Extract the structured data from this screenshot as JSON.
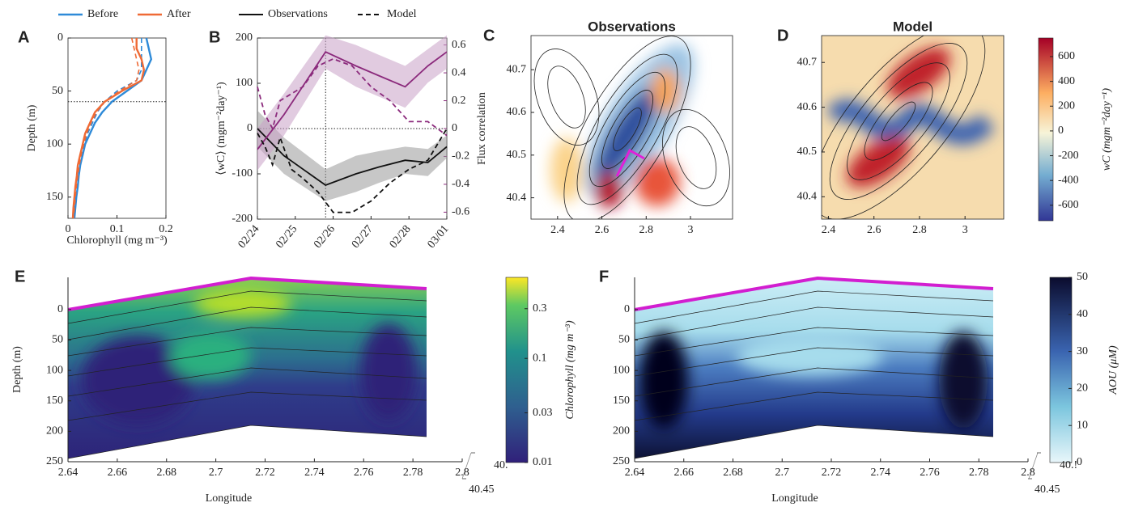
{
  "chart_data": [
    {
      "type": "line",
      "panel": "A",
      "xlabel": "Chlorophyll (mg m⁻³)",
      "ylabel": "Depth (m)",
      "xlim": [
        0,
        0.2
      ],
      "xticks": [
        0,
        0.1,
        0.2
      ],
      "ylim": [
        0,
        170
      ],
      "yticks": [
        0,
        50,
        100,
        150
      ],
      "y_reversed": true,
      "depth": [
        0,
        10,
        20,
        30,
        40,
        50,
        60,
        70,
        80,
        90,
        100,
        110,
        120,
        130,
        140,
        150,
        160,
        170
      ],
      "series": [
        {
          "name": "Before",
          "color": "#2e8ad8",
          "values": [
            0.16,
            0.165,
            0.17,
            0.16,
            0.15,
            0.12,
            0.09,
            0.07,
            0.055,
            0.045,
            0.035,
            0.03,
            0.025,
            0.022,
            0.02,
            0.017,
            0.015,
            0.013
          ],
          "model_values": [
            0.15,
            0.15,
            0.15,
            0.15,
            0.14,
            0.1,
            0.075,
            0.06,
            0.05,
            0.04,
            0.033,
            0.028,
            0.024,
            0.021,
            0.018,
            0.016,
            0.014,
            0.012
          ]
        },
        {
          "name": "After",
          "color": "#ef6a35",
          "values": [
            0.14,
            0.14,
            0.15,
            0.155,
            0.15,
            0.11,
            0.075,
            0.055,
            0.045,
            0.035,
            0.03,
            0.025,
            0.02,
            0.018,
            0.015,
            0.013,
            0.011,
            0.01
          ],
          "model_values": [
            0.13,
            0.135,
            0.14,
            0.145,
            0.14,
            0.105,
            0.075,
            0.058,
            0.047,
            0.038,
            0.032,
            0.027,
            0.023,
            0.02,
            0.017,
            0.015,
            0.013,
            0.011
          ]
        }
      ],
      "hline": 60
    },
    {
      "type": "line",
      "panel": "B",
      "ylabel": "⟨wC⟩ (mgm⁻²day⁻¹)",
      "y2label": "Flux correlation",
      "xlim": [
        0,
        5
      ],
      "xticks": [
        {
          "value": 0,
          "label": "02/24"
        },
        {
          "value": 1,
          "label": "02/25"
        },
        {
          "value": 2,
          "label": "02/26"
        },
        {
          "value": 3,
          "label": "02/27"
        },
        {
          "value": 4,
          "label": "02/28"
        },
        {
          "value": 5,
          "label": "03/01"
        }
      ],
      "ylim": [
        -200,
        200
      ],
      "yticks": [
        -200,
        -100,
        0,
        100,
        200
      ],
      "y2lim": [
        -0.65,
        0.65
      ],
      "y2ticks": [
        -0.6,
        -0.4,
        -0.2,
        0,
        0.2,
        0.4,
        0.6
      ],
      "correlation_color": "#8b2a7c",
      "series": [
        {
          "name": "Observations",
          "color": "#111111",
          "style": "solid",
          "x": [
            0,
            0.7,
            1.8,
            2.6,
            3.2,
            3.9,
            4.5,
            5
          ],
          "values": [
            0,
            -60,
            -125,
            -100,
            -85,
            -70,
            -75,
            -40
          ],
          "errors": [
            40,
            40,
            35,
            40,
            35,
            30,
            30,
            25
          ],
          "correlation": [
            -0.15,
            0.1,
            0.55,
            0.45,
            0.38,
            0.3,
            0.45,
            0.55
          ],
          "correlation_errors": [
            0.15,
            0.15,
            0.12,
            0.15,
            0.15,
            0.15,
            0.12,
            0.12
          ]
        },
        {
          "name": "Model",
          "color": "#111111",
          "style": "dashed",
          "x": [
            0,
            0.2,
            0.4,
            0.6,
            0.9,
            1.2,
            1.6,
            2.0,
            2.5,
            3.0,
            3.5,
            4.0,
            4.5,
            5
          ],
          "values": [
            -10,
            -40,
            -80,
            -20,
            -90,
            -110,
            -140,
            -185,
            -185,
            -160,
            -120,
            -90,
            -70,
            0
          ],
          "correlation": [
            0.3,
            0.1,
            0.0,
            0.2,
            0.25,
            0.3,
            0.45,
            0.5,
            0.45,
            0.3,
            0.2,
            0.05,
            0.05,
            -0.05
          ]
        }
      ],
      "vline": 1.8,
      "hline": 0
    },
    {
      "type": "heatmap",
      "panel": "C",
      "title": "Observations",
      "xlim": [
        2.28,
        3.19
      ],
      "xticks": [
        2.4,
        2.6,
        2.8,
        3
      ],
      "ylim": [
        40.35,
        40.78
      ],
      "yticks": [
        40.4,
        40.5,
        40.6,
        40.7
      ]
    },
    {
      "type": "heatmap",
      "panel": "D",
      "title": "Model",
      "xlim": [
        2.37,
        3.17
      ],
      "xticks": [
        2.4,
        2.6,
        2.8,
        3
      ],
      "ylim": [
        40.35,
        40.76
      ],
      "yticks": [
        40.4,
        40.5,
        40.6,
        40.7
      ],
      "colorbar": {
        "label": "wC (mgm⁻²day⁻¹)",
        "lim": [
          -725,
          750
        ],
        "ticks": [
          -600,
          -400,
          -200,
          0,
          200,
          400,
          600
        ],
        "log": false
      }
    },
    {
      "type": "section",
      "panel": "E",
      "xlabel": "Longitude",
      "ylabel": "Depth (m)",
      "xlim": [
        2.64,
        2.8
      ],
      "xticks": [
        2.64,
        2.66,
        2.68,
        2.7,
        2.72,
        2.74,
        2.76,
        2.78,
        2.8
      ],
      "ylim": [
        -53,
        250
      ],
      "yticks": [
        0,
        50,
        100,
        150,
        200,
        250
      ],
      "y_reversed": true,
      "lat_ticks": [
        {
          "value": 40.5,
          "label": "40."
        },
        40.45
      ],
      "colorbar": {
        "label": "Chlorophyll (mg m⁻³)",
        "lim": [
          0.01,
          0.6
        ],
        "ticks": [
          0.01,
          0.03,
          0.1,
          0.3
        ],
        "log": true
      }
    },
    {
      "type": "section",
      "panel": "F",
      "xlabel": "Longitude",
      "xlim": [
        2.64,
        2.8
      ],
      "xticks": [
        2.64,
        2.66,
        2.68,
        2.7,
        2.72,
        2.74,
        2.76,
        2.78,
        2.8
      ],
      "ylim": [
        -53,
        250
      ],
      "yticks": [
        0,
        50,
        100,
        150,
        200,
        250
      ],
      "y_reversed": true,
      "lat_ticks": [
        {
          "value": 40.5,
          "label": "40.!"
        },
        40.45
      ],
      "colorbar": {
        "label": "AOU (μM)",
        "lim": [
          0,
          50
        ],
        "ticks": [
          0,
          10,
          20,
          30,
          40,
          50
        ],
        "log": false
      }
    }
  ]
}
